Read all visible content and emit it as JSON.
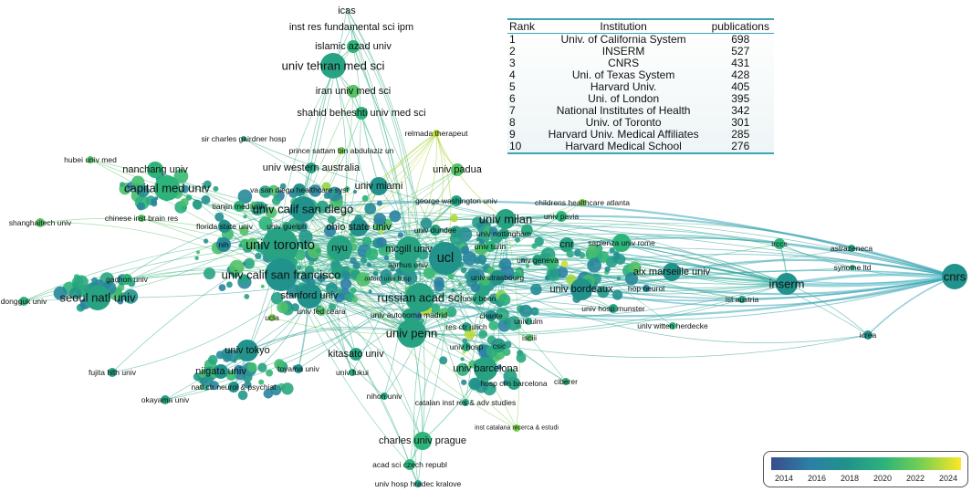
{
  "colors": {
    "y2014": "#3b4c8c",
    "y2016": "#2c7fa6",
    "y2018": "#21928c",
    "y2020": "#2db47a",
    "y2022": "#7cd050",
    "y2024": "#fde725"
  },
  "nodes": [
    {
      "id": "icas",
      "label": "icas",
      "year": 2019,
      "size": 1
    },
    {
      "id": "irfs",
      "label": "inst res fundamental sci ipm",
      "year": 2019,
      "size": 1
    },
    {
      "id": "iau",
      "label": "islamic azad univ",
      "year": 2020,
      "size": 2
    },
    {
      "id": "tums",
      "label": "univ tehran med sci",
      "year": 2019,
      "size": 4
    },
    {
      "id": "iums",
      "label": "iran univ med sci",
      "year": 2021,
      "size": 3
    },
    {
      "id": "sbmu",
      "label": "shahid beheshti univ med sci",
      "year": 2020,
      "size": 3
    },
    {
      "id": "relmada",
      "label": "relmada therapeut",
      "year": 2023,
      "size": 1
    },
    {
      "id": "scgh",
      "label": "sir charles gairdner hosp",
      "year": 2019,
      "size": 1
    },
    {
      "id": "psau",
      "label": "prince sattam bin abdulaziz un",
      "year": 2022,
      "size": 1
    },
    {
      "id": "hubei",
      "label": "hubei univ med",
      "year": 2021,
      "size": 1
    },
    {
      "id": "nanchang",
      "label": "nanchang univ",
      "year": 2020,
      "size": 2
    },
    {
      "id": "uwa",
      "label": "univ western australia",
      "year": 2019,
      "size": 2
    },
    {
      "id": "padua",
      "label": "univ padua",
      "year": 2021,
      "size": 2
    },
    {
      "id": "ccmu",
      "label": "capital med univ",
      "year": 2020,
      "size": 4
    },
    {
      "id": "vasd",
      "label": "va san diego healthcare syst",
      "year": 2018,
      "size": 2
    },
    {
      "id": "miami",
      "label": "univ miami",
      "year": 2018,
      "size": 3
    },
    {
      "id": "gwu",
      "label": "george washington univ",
      "year": 2019,
      "size": 2
    },
    {
      "id": "choa",
      "label": "childrens healthcare atlanta",
      "year": 2022,
      "size": 1
    },
    {
      "id": "tianjin",
      "label": "tianjin med univ",
      "year": 2020,
      "size": 2
    },
    {
      "id": "ucsd",
      "label": "univ calif san diego",
      "year": 2018,
      "size": 6
    },
    {
      "id": "milan",
      "label": "univ milan",
      "year": 2019,
      "size": 5
    },
    {
      "id": "pavia",
      "label": "univ pavia",
      "year": 2020,
      "size": 2
    },
    {
      "id": "shtech",
      "label": "shanghaitech univ",
      "year": 2021,
      "size": 1
    },
    {
      "id": "cibr",
      "label": "chinese inst brain res",
      "year": 2021,
      "size": 1
    },
    {
      "id": "fsu",
      "label": "florida state univ",
      "year": 2018,
      "size": 2
    },
    {
      "id": "guelph",
      "label": "univ guelph",
      "year": 2019,
      "size": 1
    },
    {
      "id": "osu",
      "label": "ohio state univ",
      "year": 2018,
      "size": 3
    },
    {
      "id": "dundee",
      "label": "univ dundee",
      "year": 2019,
      "size": 2
    },
    {
      "id": "nottingham",
      "label": "univ nottingham",
      "year": 2019,
      "size": 2
    },
    {
      "id": "nih",
      "label": "nih",
      "year": 2017,
      "size": 2
    },
    {
      "id": "toronto",
      "label": "univ toronto",
      "year": 2019,
      "size": 8
    },
    {
      "id": "nyu",
      "label": "nyu",
      "year": 2019,
      "size": 4
    },
    {
      "id": "mcgill",
      "label": "mcgill univ",
      "year": 2019,
      "size": 5
    },
    {
      "id": "ucl",
      "label": "ucl",
      "year": 2018,
      "size": 7
    },
    {
      "id": "turin",
      "label": "univ turin",
      "year": 2020,
      "size": 2
    },
    {
      "id": "cnr",
      "label": "cnr",
      "year": 2019,
      "size": 2
    },
    {
      "id": "sapienza",
      "label": "sapienza univ rome",
      "year": 2020,
      "size": 3
    },
    {
      "id": "irccs",
      "label": "irccs",
      "year": 2020,
      "size": 2
    },
    {
      "id": "astrazeneca",
      "label": "astrazeneca",
      "year": 2019,
      "size": 1
    },
    {
      "id": "cnrs",
      "label": "cnrs",
      "year": 2018,
      "size": 5
    },
    {
      "id": "aarhus",
      "label": "aarhus univ",
      "year": 2019,
      "size": 3
    },
    {
      "id": "geneva",
      "label": "univ geneva",
      "year": 2019,
      "size": 2
    },
    {
      "id": "amu",
      "label": "aix marseille univ",
      "year": 2018,
      "size": 3
    },
    {
      "id": "synome",
      "label": "synome ltd",
      "year": 2020,
      "size": 1
    },
    {
      "id": "gachon",
      "label": "gachon univ",
      "year": 2020,
      "size": 1
    },
    {
      "id": "ucsf",
      "label": "univ calif san francisco",
      "year": 2018,
      "size": 6
    },
    {
      "id": "ouh",
      "label": "oxford univ hosp",
      "year": 2019,
      "size": 1
    },
    {
      "id": "strasbourg",
      "label": "univ strasbourg",
      "year": 2018,
      "size": 2
    },
    {
      "id": "inserm",
      "label": "inserm",
      "year": 2018,
      "size": 6
    },
    {
      "id": "dongguk",
      "label": "dongguk univ",
      "year": 2020,
      "size": 1
    },
    {
      "id": "snu",
      "label": "seoul natl univ",
      "year": 2019,
      "size": 4
    },
    {
      "id": "stanford",
      "label": "stanford univ",
      "year": 2018,
      "size": 5
    },
    {
      "id": "ras",
      "label": "russian acad sci",
      "year": 2019,
      "size": 5
    },
    {
      "id": "bordeaux",
      "label": "univ bordeaux",
      "year": 2018,
      "size": 4
    },
    {
      "id": "hopneurol",
      "label": "hop neurol",
      "year": 2017,
      "size": 1
    },
    {
      "id": "ista",
      "label": "ist austria",
      "year": 2019,
      "size": 1
    },
    {
      "id": "bonn",
      "label": "univ bonn",
      "year": 2019,
      "size": 2
    },
    {
      "id": "ufc",
      "label": "univ fed ceara",
      "year": 2021,
      "size": 1
    },
    {
      "id": "ucla",
      "label": "ucla",
      "year": 2022,
      "size": 1
    },
    {
      "id": "uam",
      "label": "univ autonoma madrid",
      "year": 2019,
      "size": 2
    },
    {
      "id": "charite",
      "label": "charite",
      "year": 2018,
      "size": 2
    },
    {
      "id": "uhm",
      "label": "univ hosp munster",
      "year": 2019,
      "size": 1
    },
    {
      "id": "juelich",
      "label": "res ctr julich",
      "year": 2019,
      "size": 1
    },
    {
      "id": "ulm",
      "label": "univ ulm",
      "year": 2019,
      "size": 1
    },
    {
      "id": "witten",
      "label": "univ witten herdecke",
      "year": 2020,
      "size": 1
    },
    {
      "id": "icrea",
      "label": "icrea",
      "year": 2018,
      "size": 2
    },
    {
      "id": "penn",
      "label": "univ penn",
      "year": 2019,
      "size": 6
    },
    {
      "id": "isciii",
      "label": "isciii",
      "year": 2021,
      "size": 1
    },
    {
      "id": "utokyo",
      "label": "univ tokyo",
      "year": 2018,
      "size": 4
    },
    {
      "id": "kitasato",
      "label": "kitasato univ",
      "year": 2019,
      "size": 2
    },
    {
      "id": "uhosp",
      "label": "univ hosp",
      "year": 2019,
      "size": 1
    },
    {
      "id": "csic",
      "label": "csic",
      "year": 2019,
      "size": 2
    },
    {
      "id": "fujita",
      "label": "fujita hlth univ",
      "year": 2019,
      "size": 1
    },
    {
      "id": "niigata",
      "label": "niigata univ",
      "year": 2018,
      "size": 2
    },
    {
      "id": "toyama",
      "label": "toyama univ",
      "year": 2018,
      "size": 1
    },
    {
      "id": "fukui",
      "label": "univ fukui",
      "year": 2019,
      "size": 1
    },
    {
      "id": "ub",
      "label": "univ barcelona",
      "year": 2019,
      "size": 4
    },
    {
      "id": "hcb",
      "label": "hosp clin barcelona",
      "year": 2019,
      "size": 2
    },
    {
      "id": "ciberer",
      "label": "ciberer",
      "year": 2020,
      "size": 1
    },
    {
      "id": "ncnp",
      "label": "natl ctr neurol & psychiat",
      "year": 2018,
      "size": 2
    },
    {
      "id": "okayama",
      "label": "okayama univ",
      "year": 2019,
      "size": 1
    },
    {
      "id": "nihon",
      "label": "nihon univ",
      "year": 2019,
      "size": 1
    },
    {
      "id": "icrea2",
      "label": "catalan inst res & adv studies",
      "year": 2019,
      "size": 1
    },
    {
      "id": "icre3",
      "label": "inst catalana recerca & estudi",
      "year": 2022,
      "size": 1
    },
    {
      "id": "cuni",
      "label": "charles univ prague",
      "year": 2020,
      "size": 3
    },
    {
      "id": "cas",
      "label": "acad sci czech republ",
      "year": 2020,
      "size": 2
    },
    {
      "id": "uhhk",
      "label": "univ hosp hradec kralove",
      "year": 2019,
      "size": 1
    }
  ],
  "ranking_table": {
    "headers": {
      "rank": "Rank",
      "institution": "Institution",
      "publications": "publications"
    },
    "rows": [
      {
        "rank": "1",
        "institution": "Univ. of California System",
        "publications": "698"
      },
      {
        "rank": "2",
        "institution": "INSERM",
        "publications": "527"
      },
      {
        "rank": "3",
        "institution": "CNRS",
        "publications": "431"
      },
      {
        "rank": "4",
        "institution": "Uni. of Texas System",
        "publications": "428"
      },
      {
        "rank": "5",
        "institution": "Harvard Univ.",
        "publications": "405"
      },
      {
        "rank": "6",
        "institution": "Uni. of London",
        "publications": "395"
      },
      {
        "rank": "7",
        "institution": "National Institutes of Health",
        "publications": "342"
      },
      {
        "rank": "8",
        "institution": "Univ. of Toronto",
        "publications": "301"
      },
      {
        "rank": "9",
        "institution": "Harvard Univ. Medical Affiliates",
        "publications": "285"
      },
      {
        "rank": "10",
        "institution": "Harvard Medical School",
        "publications": "276"
      }
    ]
  },
  "legend": {
    "ticks": [
      "2014",
      "2016",
      "2018",
      "2020",
      "2022",
      "2024"
    ]
  }
}
